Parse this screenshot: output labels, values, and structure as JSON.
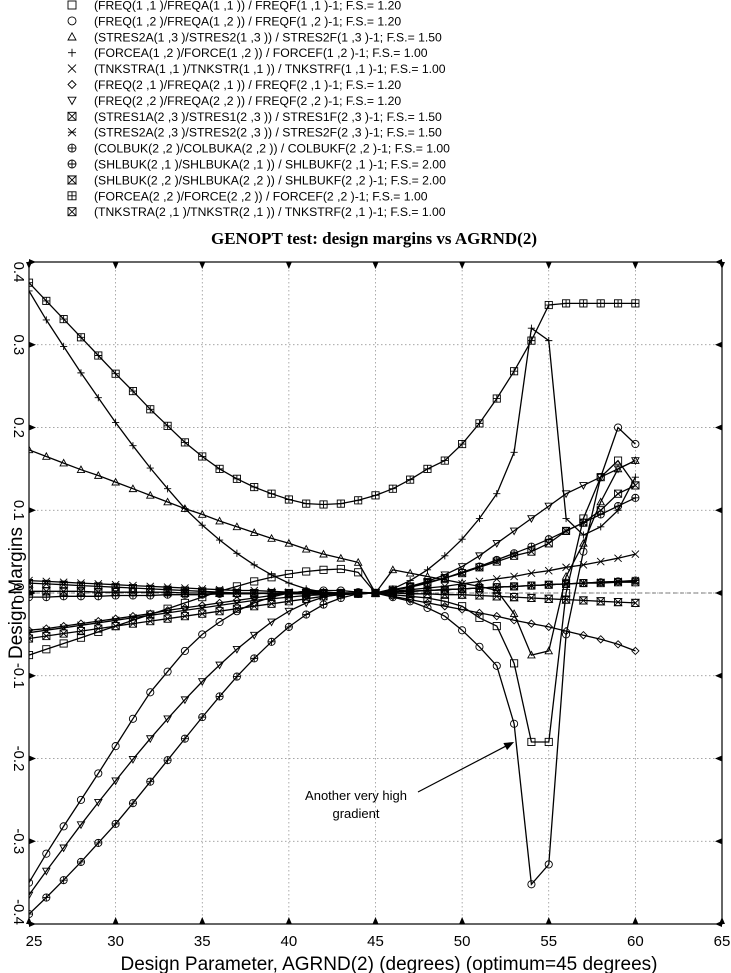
{
  "chart_data": {
    "type": "line",
    "title": "GENOPT test: design margins vs AGRND(2)",
    "xlabel": "Design Parameter, AGRND(2) (degrees) (optimum=45 degrees)",
    "ylabel": "Design Margins",
    "xlim": [
      25,
      65
    ],
    "ylim": [
      -0.4,
      0.4
    ],
    "x_ticks": [
      "25",
      "30",
      "35",
      "40",
      "45",
      "50",
      "55",
      "60",
      "65"
    ],
    "y_ticks": [
      "-0.4",
      "-0.3",
      "-0.2",
      "-0.1",
      "0.0",
      "0.1",
      "0.2",
      "0.3",
      "0.4"
    ],
    "grid": true,
    "annotation": {
      "text": [
        "Another very high",
        "gradient"
      ],
      "arrow_to": [
        53,
        -0.18
      ]
    },
    "series": [
      {
        "name": "(FREQ(1 ,1 )/FREQA(1 ,1 )) / FREQF(1 ,1 )-1; F.S.=  1.20",
        "marker": "square",
        "x": [
          25,
          26,
          27,
          28,
          29,
          30,
          31,
          32,
          33,
          34,
          35,
          36,
          37,
          38,
          39,
          40,
          41,
          42,
          43,
          44,
          45,
          46,
          47,
          48,
          49,
          50,
          51,
          52,
          53,
          54,
          55,
          56,
          57,
          58,
          59,
          60
        ],
        "y": [
          -0.075,
          -0.068,
          -0.061,
          -0.054,
          -0.047,
          -0.04,
          -0.033,
          -0.026,
          -0.019,
          -0.012,
          -0.005,
          0.002,
          0.008,
          0.014,
          0.019,
          0.023,
          0.026,
          0.028,
          0.029,
          0.025,
          0.0,
          -0.002,
          -0.004,
          -0.006,
          -0.01,
          -0.016,
          -0.03,
          -0.04,
          -0.085,
          -0.18,
          -0.18,
          0.0,
          0.09,
          0.14,
          0.16,
          0.13
        ]
      },
      {
        "name": "(FREQ(1 ,2 )/FREQA(1 ,2 )) / FREQF(1 ,2 )-1; F.S.=  1.20",
        "marker": "circle",
        "x": [
          25,
          26,
          27,
          28,
          29,
          30,
          31,
          32,
          33,
          34,
          35,
          36,
          37,
          38,
          39,
          40,
          41,
          42,
          43,
          44,
          45,
          46,
          47,
          48,
          49,
          50,
          51,
          52,
          53,
          54,
          55,
          56,
          57,
          58,
          59,
          60
        ],
        "y": [
          -0.35,
          -0.315,
          -0.282,
          -0.25,
          -0.218,
          -0.185,
          -0.152,
          -0.12,
          -0.095,
          -0.07,
          -0.05,
          -0.035,
          -0.022,
          -0.012,
          -0.005,
          0.0,
          0.002,
          0.003,
          0.003,
          0.001,
          0.0,
          -0.005,
          -0.01,
          -0.018,
          -0.028,
          -0.045,
          -0.065,
          -0.088,
          -0.158,
          -0.352,
          -0.328,
          -0.05,
          0.05,
          0.14,
          0.2,
          0.18
        ]
      },
      {
        "name": "(STRES2A(1 ,3 )/STRES2(1 ,3 )) / STRES2F(1 ,3 )-1; F.S.=  1.50",
        "marker": "triangle-up",
        "x": [
          25,
          26,
          27,
          28,
          29,
          30,
          31,
          32,
          33,
          34,
          35,
          36,
          37,
          38,
          39,
          40,
          41,
          42,
          43,
          44,
          45,
          46,
          47,
          48,
          49,
          50,
          51,
          52,
          53,
          54,
          55,
          56,
          57,
          58,
          59,
          60
        ],
        "y": [
          0.173,
          0.165,
          0.157,
          0.149,
          0.142,
          0.134,
          0.126,
          0.118,
          0.11,
          0.102,
          0.095,
          0.087,
          0.08,
          0.073,
          0.066,
          0.06,
          0.053,
          0.047,
          0.042,
          0.037,
          0.0,
          0.028,
          0.024,
          0.02,
          0.016,
          0.012,
          0.008,
          0.003,
          -0.025,
          -0.075,
          -0.07,
          0.02,
          0.06,
          0.11,
          0.15,
          0.16
        ]
      },
      {
        "name": "(FORCEA(1 ,2 )/FORCE(1 ,2 )) / FORCEF(1 ,2 )-1; F.S.=  1.00",
        "marker": "plus",
        "x": [
          25,
          26,
          27,
          28,
          29,
          30,
          31,
          32,
          33,
          34,
          35,
          36,
          37,
          38,
          39,
          40,
          41,
          42,
          43,
          44,
          45,
          46,
          47,
          48,
          49,
          50,
          51,
          52,
          53,
          54,
          55,
          56,
          57,
          58,
          59,
          60
        ],
        "y": [
          0.365,
          0.33,
          0.298,
          0.266,
          0.236,
          0.206,
          0.178,
          0.151,
          0.126,
          0.102,
          0.082,
          0.064,
          0.048,
          0.034,
          0.022,
          0.012,
          0.005,
          0.001,
          0.0,
          -0.001,
          0.0,
          0.005,
          0.015,
          0.028,
          0.045,
          0.065,
          0.09,
          0.12,
          0.17,
          0.32,
          0.305,
          0.09,
          0.07,
          0.08,
          0.1,
          0.14
        ]
      },
      {
        "name": "(TNKSTRA(1 ,1 )/TNKSTR(1 ,1 )) / TNKSTRF(1 ,1 )-1; F.S.=  1.00",
        "marker": "x",
        "x": [
          25,
          26,
          27,
          28,
          29,
          30,
          31,
          32,
          33,
          34,
          35,
          36,
          37,
          38,
          39,
          40,
          41,
          42,
          43,
          44,
          45,
          46,
          47,
          48,
          49,
          50,
          51,
          52,
          53,
          54,
          55,
          56,
          57,
          58,
          59,
          60
        ],
        "y": [
          -0.048,
          -0.045,
          -0.042,
          -0.039,
          -0.036,
          -0.033,
          -0.03,
          -0.027,
          -0.024,
          -0.021,
          -0.018,
          -0.015,
          -0.012,
          -0.009,
          -0.007,
          -0.005,
          -0.003,
          -0.002,
          -0.001,
          0.0,
          0.0,
          0.002,
          0.004,
          0.006,
          0.008,
          0.011,
          0.014,
          0.017,
          0.02,
          0.024,
          0.027,
          0.031,
          0.034,
          0.038,
          0.042,
          0.047
        ]
      },
      {
        "name": "(FREQ(2 ,1 )/FREQA(2 ,1 )) / FREQF(2 ,1 )-1; F.S.=  1.20",
        "marker": "diamond",
        "x": [
          25,
          26,
          27,
          28,
          29,
          30,
          31,
          32,
          33,
          34,
          35,
          36,
          37,
          38,
          39,
          40,
          41,
          42,
          43,
          44,
          45,
          46,
          47,
          48,
          49,
          50,
          51,
          52,
          53,
          54,
          55,
          56,
          57,
          58,
          59,
          60
        ],
        "y": [
          -0.045,
          -0.043,
          -0.04,
          -0.037,
          -0.034,
          -0.031,
          -0.028,
          -0.025,
          -0.021,
          -0.018,
          -0.015,
          -0.012,
          -0.009,
          -0.006,
          -0.003,
          0.0,
          0.002,
          0.001,
          0.0,
          -0.001,
          0.0,
          -0.004,
          -0.008,
          -0.012,
          -0.016,
          -0.02,
          -0.024,
          -0.028,
          -0.033,
          -0.037,
          -0.041,
          -0.046,
          -0.051,
          -0.056,
          -0.062,
          -0.07
        ]
      },
      {
        "name": "(FREQ(2 ,2 )/FREQA(2 ,2 )) / FREQF(2 ,2 )-1; F.S.=  1.20",
        "marker": "triangle-down",
        "x": [
          25,
          26,
          27,
          28,
          29,
          30,
          31,
          32,
          33,
          34,
          35,
          36,
          37,
          38,
          39,
          40,
          41,
          42,
          43,
          44,
          45,
          46,
          47,
          48,
          49,
          50,
          51,
          52,
          53,
          54,
          55,
          56,
          57,
          58,
          59,
          60
        ],
        "y": [
          -0.365,
          -0.336,
          -0.308,
          -0.28,
          -0.253,
          -0.227,
          -0.201,
          -0.176,
          -0.152,
          -0.129,
          -0.107,
          -0.087,
          -0.068,
          -0.051,
          -0.035,
          -0.022,
          -0.012,
          -0.005,
          -0.001,
          0.0,
          0.0,
          0.003,
          0.008,
          0.014,
          0.022,
          0.032,
          0.045,
          0.06,
          0.075,
          0.09,
          0.105,
          0.12,
          0.13,
          0.14,
          0.15,
          0.16
        ]
      },
      {
        "name": "(STRES1A(2 ,3 )/STRES1(2 ,3 )) / STRES1F(2 ,3 )-1; F.S.=  1.50",
        "marker": "square-x",
        "x": [
          25,
          26,
          27,
          28,
          29,
          30,
          31,
          32,
          33,
          34,
          35,
          36,
          37,
          38,
          39,
          40,
          41,
          42,
          43,
          44,
          45,
          46,
          47,
          48,
          49,
          50,
          51,
          52,
          53,
          54,
          55,
          56,
          57,
          58,
          59,
          60
        ],
        "y": [
          0.012,
          0.011,
          0.01,
          0.009,
          0.008,
          0.007,
          0.006,
          0.005,
          0.004,
          0.003,
          0.002,
          0.001,
          0.0,
          0.0,
          -0.001,
          -0.001,
          -0.001,
          -0.001,
          0.0,
          0.0,
          0.0,
          0.001,
          0.002,
          0.003,
          0.004,
          0.005,
          0.006,
          0.007,
          0.008,
          0.009,
          0.01,
          0.011,
          0.012,
          0.012,
          0.013,
          0.013
        ]
      },
      {
        "name": "(STRES2A(2 ,3 )/STRES2(2 ,3 )) / STRES2F(2 ,3 )-1; F.S.=  1.50",
        "marker": "asterisk",
        "x": [
          25,
          26,
          27,
          28,
          29,
          30,
          31,
          32,
          33,
          34,
          35,
          36,
          37,
          38,
          39,
          40,
          41,
          42,
          43,
          44,
          45,
          46,
          47,
          48,
          49,
          50,
          51,
          52,
          53,
          54,
          55,
          56,
          57,
          58,
          59,
          60
        ],
        "y": [
          0.015,
          0.014,
          0.013,
          0.012,
          0.011,
          0.01,
          0.009,
          0.008,
          0.007,
          0.006,
          0.005,
          0.004,
          0.003,
          0.003,
          0.002,
          0.001,
          0.001,
          0.0,
          0.0,
          0.0,
          0.0,
          0.001,
          0.002,
          0.003,
          0.004,
          0.005,
          0.006,
          0.007,
          0.008,
          0.009,
          0.01,
          0.011,
          0.012,
          0.013,
          0.014,
          0.015
        ]
      },
      {
        "name": "(COLBUK(2 ,2 )/COLBUKA(2 ,2 )) / COLBUKF(2 ,2 )-1; F.S.=  1.00",
        "marker": "circle-plus",
        "x": [
          25,
          26,
          27,
          28,
          29,
          30,
          31,
          32,
          33,
          34,
          35,
          36,
          37,
          38,
          39,
          40,
          41,
          42,
          43,
          44,
          45,
          46,
          47,
          48,
          49,
          50,
          51,
          52,
          53,
          54,
          55,
          56,
          57,
          58,
          59,
          60
        ],
        "y": [
          -0.388,
          -0.368,
          -0.347,
          -0.325,
          -0.302,
          -0.279,
          -0.254,
          -0.228,
          -0.202,
          -0.176,
          -0.15,
          -0.125,
          -0.101,
          -0.079,
          -0.059,
          -0.041,
          -0.026,
          -0.014,
          -0.006,
          -0.001,
          0.0,
          0.003,
          0.007,
          0.012,
          0.018,
          0.025,
          0.032,
          0.04,
          0.048,
          0.056,
          0.065,
          0.075,
          0.085,
          0.095,
          0.105,
          0.115
        ]
      },
      {
        "name": "(SHLBUK(2 ,1 )/SHLBUKA(2 ,1 )) / SHLBUKF(2 ,1 )-1; F.S.=  2.00",
        "marker": "circle-plus",
        "x": [
          25,
          26,
          27,
          28,
          29,
          30,
          31,
          32,
          33,
          34,
          35,
          36,
          37,
          38,
          39,
          40,
          41,
          42,
          43,
          44,
          45,
          46,
          47,
          48,
          49,
          50,
          51,
          52,
          53,
          54,
          55,
          56,
          57,
          58,
          59,
          60
        ],
        "y": [
          -0.005,
          -0.005,
          -0.004,
          -0.004,
          -0.004,
          -0.003,
          -0.003,
          -0.003,
          -0.002,
          -0.002,
          -0.002,
          -0.001,
          -0.001,
          -0.001,
          0.0,
          0.0,
          0.0,
          0.0,
          0.0,
          0.0,
          0.0,
          0.001,
          0.002,
          0.003,
          0.004,
          0.005,
          0.006,
          0.007,
          0.008,
          0.009,
          0.01,
          0.011,
          0.012,
          0.013,
          0.014,
          0.015
        ]
      },
      {
        "name": "(SHLBUK(2 ,2 )/SHLBUKA(2 ,2 )) / SHLBUKF(2 ,2 )-1; F.S.=  2.00",
        "marker": "hourglass",
        "x": [
          25,
          26,
          27,
          28,
          29,
          30,
          31,
          32,
          33,
          34,
          35,
          36,
          37,
          38,
          39,
          40,
          41,
          42,
          43,
          44,
          45,
          46,
          47,
          48,
          49,
          50,
          51,
          52,
          53,
          54,
          55,
          56,
          57,
          58,
          59,
          60
        ],
        "y": [
          0.002,
          0.002,
          0.002,
          0.002,
          0.001,
          0.001,
          0.001,
          0.001,
          0.001,
          0.0,
          0.0,
          0.0,
          0.0,
          0.0,
          0.0,
          0.0,
          0.0,
          0.0,
          0.0,
          0.0,
          0.0,
          0.0,
          -0.001,
          -0.001,
          -0.002,
          -0.002,
          -0.003,
          -0.004,
          -0.005,
          -0.006,
          -0.007,
          -0.008,
          -0.009,
          -0.01,
          -0.011,
          -0.012
        ]
      },
      {
        "name": "(FORCEA(2 ,2 )/FORCE(2 ,2 )) / FORCEF(2 ,2 )-1; F.S.=  1.00",
        "marker": "square-plus",
        "x": [
          25,
          26,
          27,
          28,
          29,
          30,
          31,
          32,
          33,
          34,
          35,
          36,
          37,
          38,
          39,
          40,
          41,
          42,
          43,
          44,
          45,
          46,
          47,
          48,
          49,
          50,
          51,
          52,
          53,
          54,
          55,
          56,
          57,
          58,
          59,
          60
        ],
        "y": [
          0.375,
          0.353,
          0.331,
          0.309,
          0.287,
          0.265,
          0.244,
          0.222,
          0.202,
          0.182,
          0.165,
          0.15,
          0.138,
          0.128,
          0.12,
          0.113,
          0.108,
          0.107,
          0.108,
          0.112,
          0.118,
          0.126,
          0.137,
          0.15,
          0.16,
          0.18,
          0.205,
          0.235,
          0.268,
          0.305,
          0.348,
          0.35,
          0.35,
          0.35,
          0.35,
          0.35
        ]
      },
      {
        "name": "(TNKSTRA(2 ,1 )/TNKSTR(2 ,1 )) / TNKSTRF(2 ,1 )-1; F.S.=  1.00",
        "marker": "square-x",
        "x": [
          25,
          26,
          27,
          28,
          29,
          30,
          31,
          32,
          33,
          34,
          35,
          36,
          37,
          38,
          39,
          40,
          41,
          42,
          43,
          44,
          45,
          46,
          47,
          48,
          49,
          50,
          51,
          52,
          53,
          54,
          55,
          56,
          57,
          58,
          59,
          60
        ],
        "y": [
          -0.055,
          -0.052,
          -0.049,
          -0.046,
          -0.043,
          -0.04,
          -0.037,
          -0.034,
          -0.031,
          -0.028,
          -0.025,
          -0.022,
          -0.019,
          -0.016,
          -0.013,
          -0.01,
          -0.007,
          -0.004,
          -0.002,
          -0.001,
          0.0,
          0.004,
          0.008,
          0.013,
          0.018,
          0.024,
          0.031,
          0.038,
          0.045,
          0.05,
          0.06,
          0.075,
          0.085,
          0.1,
          0.12,
          0.13
        ]
      }
    ]
  }
}
